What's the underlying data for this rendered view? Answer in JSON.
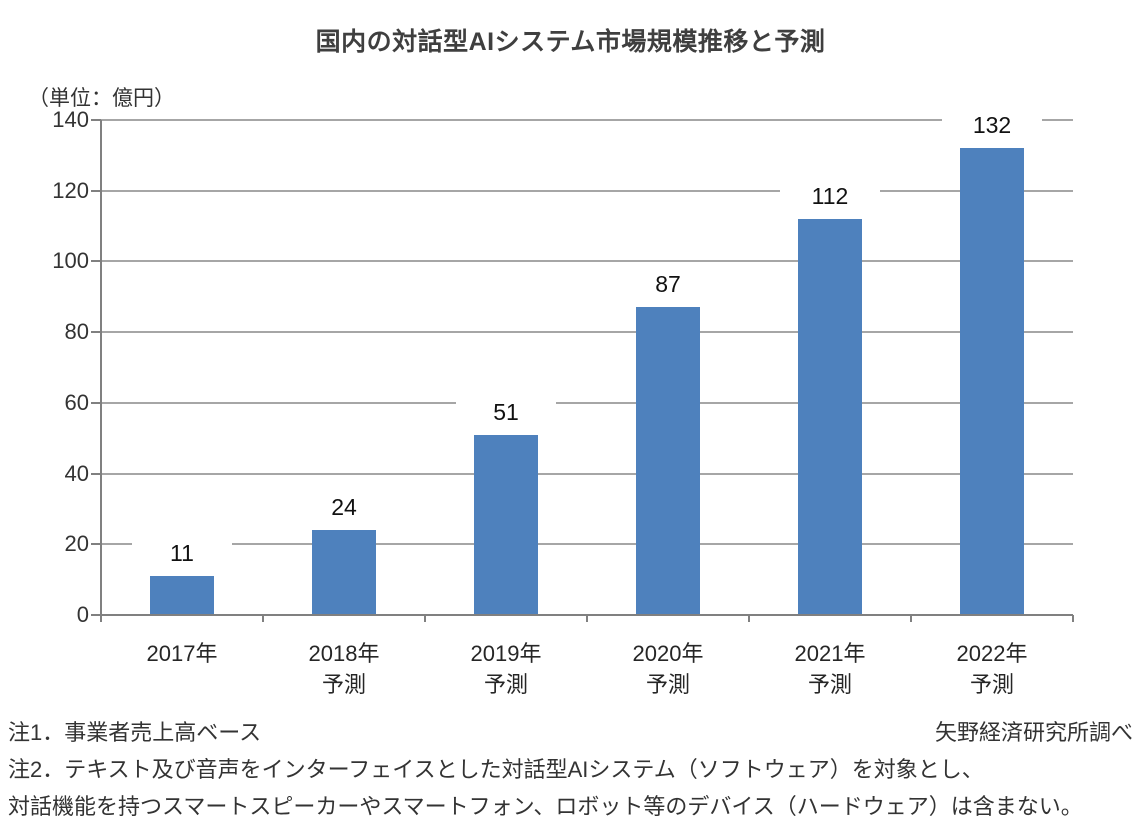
{
  "chart_data": {
    "type": "bar",
    "title": "国内の対話型AIシステム市場規模推移と予測",
    "unit_label": "（単位：億円）",
    "categories": [
      [
        "2017年"
      ],
      [
        "2018年",
        "予測"
      ],
      [
        "2019年",
        "予測"
      ],
      [
        "2020年",
        "予測"
      ],
      [
        "2021年",
        "予測"
      ],
      [
        "2022年",
        "予測"
      ]
    ],
    "values": [
      11,
      24,
      51,
      87,
      112,
      132
    ],
    "value_labels": [
      "11",
      "24",
      "51",
      "87",
      "112",
      "132"
    ],
    "ylim": [
      0,
      140
    ],
    "yticks": [
      0,
      20,
      40,
      60,
      80,
      100,
      120,
      140
    ],
    "grid": true,
    "legend": "none",
    "xlabel": "",
    "ylabel": "（単位：億円）"
  },
  "colors": {
    "bar": "#4E81BD",
    "gridline": "#A6A6A6",
    "axis": "#808080",
    "title_text": "#3F3F3F",
    "tick_text": "#333333",
    "value_text": "#111111",
    "background": "#FFFFFF"
  },
  "footer": {
    "note1": "注1．事業者売上高ベース",
    "source": "矢野経済研究所調べ",
    "note2_line1": "注2．テキスト及び音声をインターフェイスとした対話型AIシステム（ソフトウェア）を対象とし、",
    "note2_line2": "対話機能を持つスマートスピーカーやスマートフォン、ロボット等のデバイス（ハードウェア）は含まない。"
  }
}
